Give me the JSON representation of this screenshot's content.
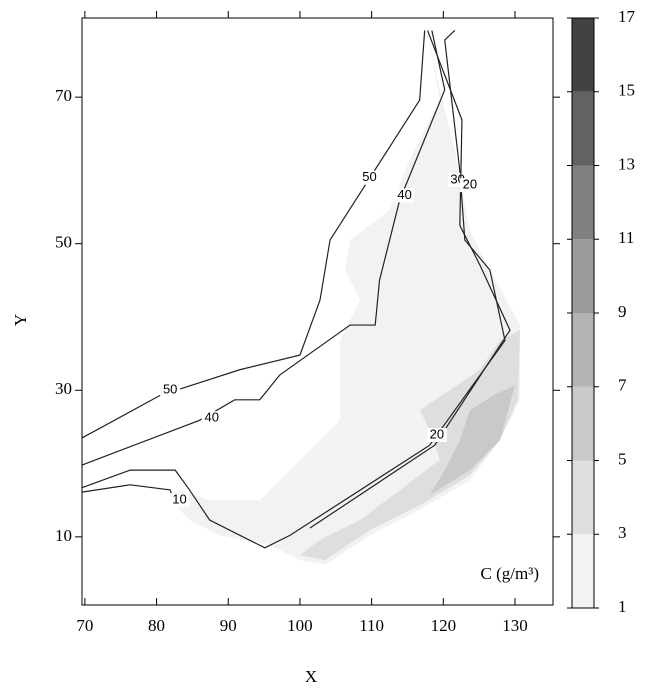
{
  "chart_data": {
    "type": "contour",
    "x_label": "X",
    "y_label": "Y",
    "annotation": "C (g/m³)",
    "xlim": [
      69.6,
      135.3
    ],
    "ylim": [
      0.7,
      80.8
    ],
    "xticks": [
      70,
      80,
      90,
      100,
      110,
      120,
      130
    ],
    "yticks": [
      10,
      30,
      50,
      70
    ],
    "colorbar": {
      "levels": [
        1,
        3,
        5,
        7,
        9,
        11,
        13,
        15,
        17
      ],
      "colors": [
        "#f2f2f2",
        "#dedede",
        "#c9c9c9",
        "#b3b3b3",
        "#9a9a9a",
        "#818181",
        "#626262",
        "#424242"
      ]
    },
    "regions": [
      {
        "level": 1,
        "x": [
          117.8,
          119.5,
          121.6,
          123.7,
          126.5,
          130.7,
          130.7,
          127.9,
          123.7,
          116.7,
          109.7,
          103.5,
          100.0,
          95.8,
          88.8,
          84.6,
          82.6,
          83.2,
          87.4,
          94.4,
          100.0,
          105.6,
          105.6,
          108.4,
          106.3,
          107.0,
          112.5,
          115.3,
          119.5
        ],
        "y": [
          79.1,
          71.0,
          62.8,
          51.9,
          46.4,
          38.9,
          28.7,
          23.2,
          17.7,
          13.7,
          10.2,
          6.2,
          6.8,
          8.9,
          10.2,
          12.3,
          14.3,
          16.4,
          15.0,
          15.0,
          20.5,
          25.9,
          36.8,
          42.3,
          46.4,
          50.5,
          54.6,
          61.4,
          69.6
        ]
      },
      {
        "level": 3,
        "x": [
          130.7,
          130.4,
          127.9,
          123.7,
          116.7,
          109.7,
          103.5,
          100.0,
          102.8,
          108.4,
          114.0,
          119.5,
          118.1,
          116.7,
          120.9,
          125.1,
          127.9
        ],
        "y": [
          38.2,
          28.7,
          23.2,
          18.4,
          14.3,
          10.9,
          6.8,
          7.5,
          9.6,
          12.3,
          16.4,
          20.5,
          24.6,
          27.3,
          30.0,
          32.8,
          36.8
        ]
      },
      {
        "level": 5,
        "x": [
          130.0,
          127.9,
          123.7,
          118.1,
          120.2,
          122.3,
          123.7,
          127.2
        ],
        "y": [
          30.7,
          23.2,
          19.1,
          15.7,
          19.1,
          23.2,
          27.3,
          29.4
        ]
      }
    ],
    "contours": [
      {
        "level": 50,
        "x": [
          69.6,
          80.5,
          91.6,
          100.0,
          102.8,
          104.2,
          116.7,
          117.4
        ],
        "y": [
          23.5,
          29.3,
          32.8,
          34.8,
          42.3,
          50.5,
          69.6,
          79.1
        ],
        "label_x": [
          109.7,
          81.9
        ],
        "label_y": [
          59.0,
          30.0
        ]
      },
      {
        "level": 40,
        "x": [
          69.6,
          86.0,
          90.9,
          94.4,
          97.2,
          107.0,
          110.5,
          111.1,
          113.9,
          120.2,
          118.4
        ],
        "y": [
          19.8,
          25.9,
          28.7,
          28.7,
          32.1,
          38.9,
          38.9,
          45.0,
          55.9,
          71.0,
          79.1
        ],
        "label_x": [
          87.7,
          114.6
        ],
        "label_y": [
          26.2,
          56.6
        ]
      },
      {
        "level": 30,
        "x": [
          69.6,
          76.3,
          82.6,
          84.6,
          87.4,
          95.1,
          98.6,
          118.1,
          128.6,
          126.5,
          123.0,
          122.3,
          120.2,
          121.6
        ],
        "y": [
          16.7,
          19.1,
          19.1,
          16.4,
          12.3,
          8.5,
          10.2,
          22.5,
          36.8,
          46.4,
          50.5,
          60.0,
          77.8,
          79.1
        ],
        "label_x": [
          122.0
        ],
        "label_y": [
          58.7
        ]
      },
      {
        "level": 20,
        "x": [
          101.4,
          118.8,
          129.3,
          125.1,
          122.3,
          122.6,
          117.8
        ],
        "y": [
          11.2,
          22.5,
          38.2,
          47.1,
          52.5,
          66.9,
          79.1
        ],
        "label_x": [
          119.1,
          123.7
        ],
        "label_y": [
          23.9,
          58.0
        ]
      },
      {
        "level": 10,
        "x": [
          69.6,
          76.3,
          81.9,
          82.6
        ],
        "y": [
          16.1,
          17.1,
          16.4,
          14.3
        ],
        "label_x": [
          83.2
        ],
        "label_y": [
          15.0
        ]
      }
    ]
  }
}
